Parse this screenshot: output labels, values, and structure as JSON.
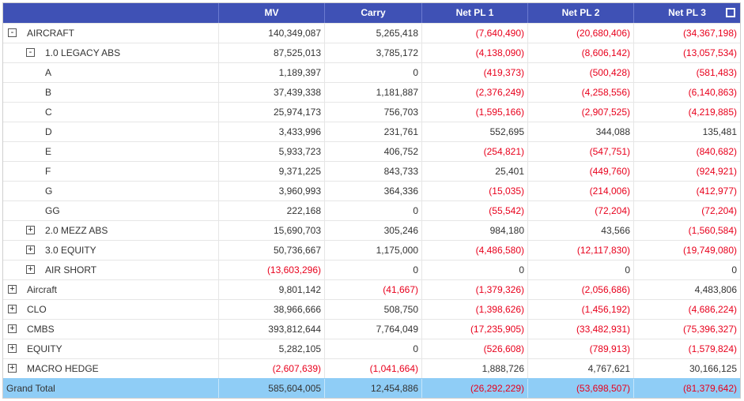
{
  "header": {
    "labels": [
      "",
      "MV",
      "Carry",
      "Net PL 1",
      "Net PL 2",
      "Net PL 3"
    ]
  },
  "rows": [
    {
      "label": "AIRCRAFT",
      "toggle": "-",
      "cells": [
        "140,349,087",
        "5,265,418",
        "(7,640,490)",
        "(20,680,406)",
        "(34,367,198)"
      ]
    },
    {
      "label": "1.0 LEGACY ABS",
      "toggle": "-",
      "cells": [
        "87,525,013",
        "3,785,172",
        "(4,138,090)",
        "(8,606,142)",
        "(13,057,534)"
      ]
    },
    {
      "label": "A",
      "toggle": "",
      "cells": [
        "1,189,397",
        "0",
        "(419,373)",
        "(500,428)",
        "(581,483)"
      ]
    },
    {
      "label": "B",
      "toggle": "",
      "cells": [
        "37,439,338",
        "1,181,887",
        "(2,376,249)",
        "(4,258,556)",
        "(6,140,863)"
      ]
    },
    {
      "label": "C",
      "toggle": "",
      "cells": [
        "25,974,173",
        "756,703",
        "(1,595,166)",
        "(2,907,525)",
        "(4,219,885)"
      ]
    },
    {
      "label": "D",
      "toggle": "",
      "cells": [
        "3,433,996",
        "231,761",
        "552,695",
        "344,088",
        "135,481"
      ]
    },
    {
      "label": "E",
      "toggle": "",
      "cells": [
        "5,933,723",
        "406,752",
        "(254,821)",
        "(547,751)",
        "(840,682)"
      ]
    },
    {
      "label": "F",
      "toggle": "",
      "cells": [
        "9,371,225",
        "843,733",
        "25,401",
        "(449,760)",
        "(924,921)"
      ]
    },
    {
      "label": "G",
      "toggle": "",
      "cells": [
        "3,960,993",
        "364,336",
        "(15,035)",
        "(214,006)",
        "(412,977)"
      ]
    },
    {
      "label": "GG",
      "toggle": "",
      "cells": [
        "222,168",
        "0",
        "(55,542)",
        "(72,204)",
        "(72,204)"
      ]
    },
    {
      "label": "2.0 MEZZ ABS",
      "toggle": "+",
      "cells": [
        "15,690,703",
        "305,246",
        "984,180",
        "43,566",
        "(1,560,584)"
      ]
    },
    {
      "label": "3.0 EQUITY",
      "toggle": "+",
      "cells": [
        "50,736,667",
        "1,175,000",
        "(4,486,580)",
        "(12,117,830)",
        "(19,749,080)"
      ]
    },
    {
      "label": "AIR SHORT",
      "toggle": "+",
      "cells": [
        "(13,603,296)",
        "0",
        "0",
        "0",
        "0"
      ]
    },
    {
      "label": "Aircraft",
      "toggle": "+",
      "cells": [
        "9,801,142",
        "(41,667)",
        "(1,379,326)",
        "(2,056,686)",
        "4,483,806"
      ]
    },
    {
      "label": "CLO",
      "toggle": "+",
      "cells": [
        "38,966,666",
        "508,750",
        "(1,398,626)",
        "(1,456,192)",
        "(4,686,224)"
      ]
    },
    {
      "label": "CMBS",
      "toggle": "+",
      "cells": [
        "393,812,644",
        "7,764,049",
        "(17,235,905)",
        "(33,482,931)",
        "(75,396,327)"
      ]
    },
    {
      "label": "EQUITY",
      "toggle": "+",
      "cells": [
        "5,282,105",
        "0",
        "(526,608)",
        "(789,913)",
        "(1,579,824)"
      ]
    },
    {
      "label": "MACRO HEDGE",
      "toggle": "+",
      "cells": [
        "(2,607,639)",
        "(1,041,664)",
        "1,888,726",
        "4,767,621",
        "30,166,125"
      ]
    }
  ],
  "total": {
    "label": "Grand Total",
    "cells": [
      "585,604,005",
      "12,454,886",
      "(26,292,229)",
      "(53,698,507)",
      "(81,379,642)"
    ]
  },
  "colors": {
    "header_bg": "#3f51b5",
    "negative": "#e8001c",
    "total_bg": "#8fcdf6"
  },
  "icons": {
    "header_right": "fullscreen-icon",
    "collapse": "minus-box-icon",
    "expand": "plus-box-icon"
  }
}
